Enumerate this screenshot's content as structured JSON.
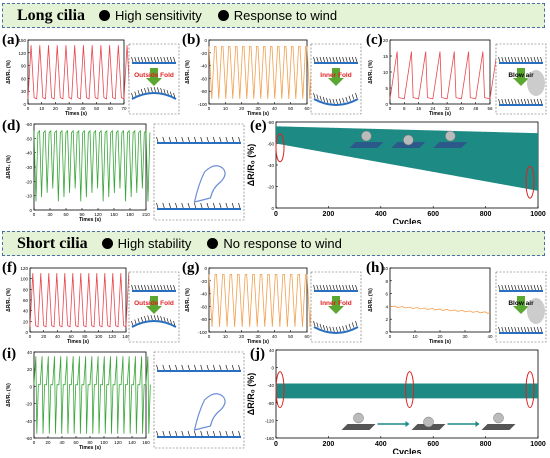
{
  "section_long": {
    "title": "Long cilia",
    "items": [
      "High sensitivity",
      "Response to wind"
    ]
  },
  "section_short": {
    "title": "Short cilia",
    "items": [
      "High stability",
      "No response to wind"
    ]
  },
  "colors": {
    "red": "#e8474f",
    "orange": "#f0a050",
    "green": "#3aa63a",
    "teal": "#1e8a84",
    "banner_bg": "#e4f2d6",
    "banner_border": "#4a6fa0"
  },
  "panels": [
    {
      "id": "a",
      "label": "(a)",
      "ylabel": "ΔR/R₀ (%)",
      "xlabel": "Times (s)",
      "yticks": [
        "0",
        "30",
        "60",
        "90",
        "120",
        "150"
      ],
      "xticks": [
        "0",
        "10",
        "20",
        "30",
        "40",
        "50",
        "60",
        "70"
      ],
      "color": "red",
      "note": "Outside Fold"
    },
    {
      "id": "b",
      "label": "(b)",
      "ylabel": "ΔR/R₀ (%)",
      "xlabel": "Times (s)",
      "yticks": [
        "-100",
        "-80",
        "-60",
        "-40",
        "-20",
        "0"
      ],
      "xticks": [
        "0",
        "10",
        "20",
        "30",
        "40",
        "50",
        "60"
      ],
      "color": "orange",
      "note": "Inner Fold"
    },
    {
      "id": "c",
      "label": "(c)",
      "ylabel": "ΔR/R₀ (%)",
      "xlabel": "Times (s)",
      "yticks": [
        "0",
        "5",
        "10",
        "15",
        "20"
      ],
      "xticks": [
        "0",
        "8",
        "16",
        "24",
        "32",
        "40",
        "48",
        "56"
      ],
      "color": "red",
      "note": "Blow air"
    },
    {
      "id": "d",
      "label": "(d)",
      "ylabel": "ΔR/R₀ (%)",
      "xlabel": "Times (s)",
      "yticks": [
        "0",
        "-10",
        "-20",
        "-30",
        "-40",
        "-50",
        "-60"
      ],
      "xticks": [
        "0",
        "30",
        "60",
        "90",
        "120",
        "150",
        "180",
        "210"
      ],
      "color": "green"
    },
    {
      "id": "e",
      "label": "(e)",
      "ylabel": "ΔR/R₀ (%)",
      "xlabel": "Cycles",
      "yticks": [
        "0",
        "-20",
        "-40",
        "-60",
        "-80"
      ],
      "xticks": [
        "0",
        "200",
        "400",
        "600",
        "800",
        "1000"
      ],
      "color": "teal"
    },
    {
      "id": "f",
      "label": "(f)",
      "ylabel": "ΔR/R₀ (%)",
      "xlabel": "Times (s)",
      "yticks": [
        "0",
        "20",
        "40",
        "60",
        "80",
        "100",
        "120"
      ],
      "xticks": [
        "0",
        "20",
        "40",
        "60",
        "80",
        "100",
        "120",
        "140"
      ],
      "color": "red",
      "note": "Outside Fold"
    },
    {
      "id": "g",
      "label": "(g)",
      "ylabel": "ΔR/R₀ (%)",
      "xlabel": "Times (s)",
      "yticks": [
        "-100",
        "-80",
        "-60",
        "-40",
        "-20",
        "0"
      ],
      "xticks": [
        "0",
        "10",
        "20",
        "30",
        "40",
        "50",
        "60"
      ],
      "color": "orange",
      "note": "Inner Fold"
    },
    {
      "id": "h",
      "label": "(h)",
      "ylabel": "ΔR/R₀ (%)",
      "xlabel": "Times (s)",
      "yticks": [
        "0",
        "2",
        "4",
        "6",
        "8",
        "10"
      ],
      "xticks": [
        "0",
        "10",
        "20",
        "30",
        "40"
      ],
      "color": "orange",
      "note": "Blow air"
    },
    {
      "id": "i",
      "label": "(i)",
      "ylabel": "ΔR/R₀ (%)",
      "xlabel": "Times (s)",
      "yticks": [
        "-60",
        "-40",
        "-20",
        "0",
        "20",
        "40"
      ],
      "xticks": [
        "0",
        "20",
        "40",
        "60",
        "80",
        "100",
        "120",
        "140",
        "160"
      ],
      "color": "green"
    },
    {
      "id": "j",
      "label": "(j)",
      "ylabel": "ΔR/R₀ (%)",
      "xlabel": "Cycles",
      "yticks": [
        "-160",
        "-120",
        "-80",
        "-40",
        "0",
        "40"
      ],
      "xticks": [
        "0",
        "200",
        "400",
        "600",
        "800",
        "1000"
      ],
      "color": "teal"
    }
  ]
}
